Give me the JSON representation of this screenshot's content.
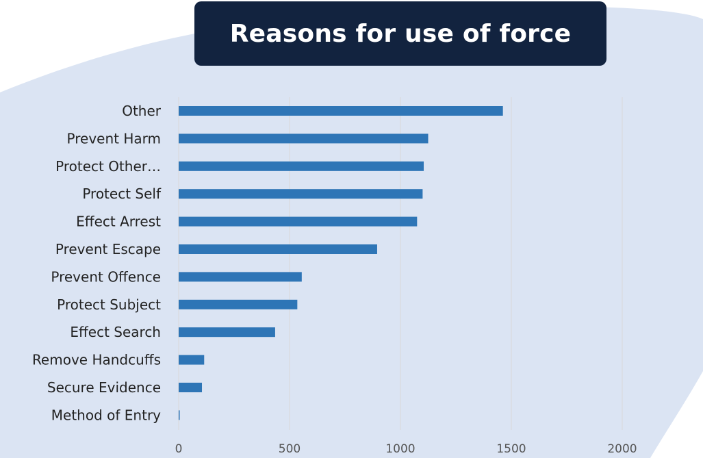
{
  "colors": {
    "blob": "#dbe4f3",
    "bar": "#2e75b6",
    "grid": "#d9d9d9",
    "title_bg": "#12233f",
    "title_text": "#ffffff"
  },
  "chart_data": {
    "type": "bar",
    "orientation": "horizontal",
    "title": "Reasons for use of force",
    "xlabel": "",
    "ylabel": "",
    "xlim": [
      0,
      2000
    ],
    "xticks": [
      0,
      500,
      1000,
      1500,
      2000
    ],
    "grid": true,
    "legend": "none",
    "categories": [
      "Other",
      "Prevent Harm",
      "Protect Other…",
      "Protect Self",
      "Effect Arrest",
      "Prevent Escape",
      "Prevent Offence",
      "Protect Subject",
      "Effect Search",
      "Remove Handcuffs",
      "Secure Evidence",
      "Method of Entry"
    ],
    "values": [
      1462,
      1125,
      1105,
      1100,
      1075,
      895,
      555,
      535,
      435,
      115,
      105,
      3
    ]
  }
}
